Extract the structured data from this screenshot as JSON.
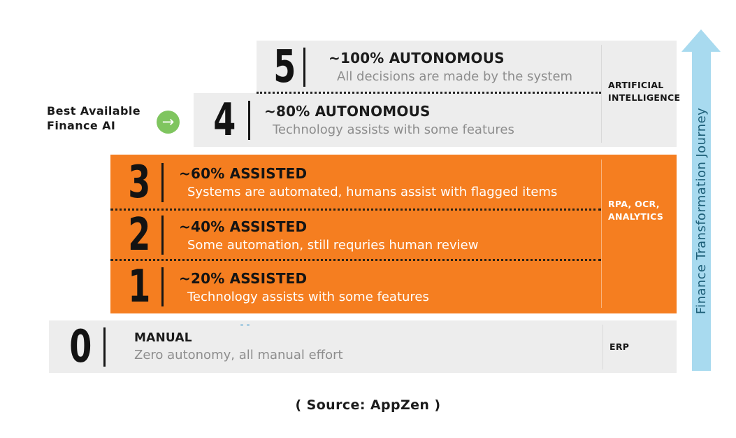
{
  "annotation": {
    "line1": "Best Available",
    "line2": "Finance AI"
  },
  "levels": [
    {
      "num": "5",
      "heading": "~100% AUTONOMOUS",
      "desc": "All decisions are made by the system"
    },
    {
      "num": "4",
      "heading": "~80% AUTONOMOUS",
      "desc": "Technology assists with some features"
    },
    {
      "num": "3",
      "heading": "~60% ASSISTED",
      "desc": "Systems are automated, humans assist with flagged items"
    },
    {
      "num": "2",
      "heading": "~40% ASSISTED",
      "desc": "Some automation, still requries human review"
    },
    {
      "num": "1",
      "heading": "~20% ASSISTED",
      "desc": "Technology assists with some features"
    },
    {
      "num": "0",
      "heading": "MANUAL",
      "desc": "Zero autonomy, all manual effort"
    }
  ],
  "side_labels": {
    "artificial_intelligence": "ARTIFICIAL INTELLIGENCE",
    "rpa_ocr_analytics": "RPA, OCR, ANALYTICS",
    "erp": "ERP"
  },
  "icons": {
    "green_arrow": "→"
  },
  "journey_arrow_label": "Finance Transformation Journey",
  "source": "( Source: AppZen )",
  "colors": {
    "orange": "#F57E20",
    "band_gray": "#EDEDED",
    "green": "#7FC55F",
    "arrow_blue": "#A8DAEF",
    "arrow_text_blue": "#1D5F78"
  }
}
